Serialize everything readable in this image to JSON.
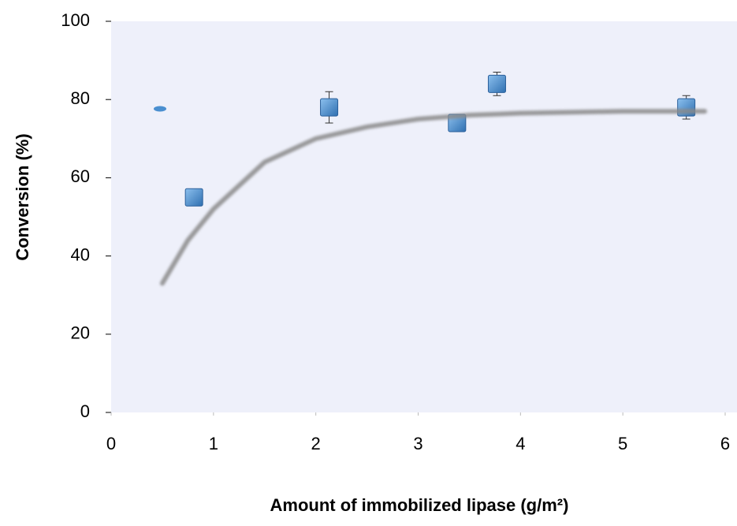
{
  "chart_data": {
    "type": "scatter",
    "x_label": "Amount of immobilized lipase (g/m²)",
    "y_label": "Conversion (%)",
    "xlim": [
      0,
      6
    ],
    "xticks": [
      0,
      1,
      2,
      3,
      4,
      5,
      6
    ],
    "ylim": [
      0,
      100
    ],
    "yticks": [
      0,
      20,
      40,
      60,
      80,
      100
    ],
    "background": "#eef0fa",
    "series": [
      {
        "kind": "points",
        "color": "#4a8fd0",
        "x": [
          0.81,
          2.13,
          3.38,
          3.77,
          5.62
        ],
        "values": [
          55,
          78,
          74,
          84,
          78
        ],
        "errors": [
          1,
          4,
          1,
          3,
          3
        ]
      },
      {
        "kind": "trend",
        "color": "#8a8a8a",
        "x": [
          0.5,
          0.75,
          1,
          1.5,
          2,
          2.5,
          3,
          3.5,
          4,
          5,
          5.8
        ],
        "values": [
          33,
          44,
          52,
          64,
          70,
          73,
          75,
          76,
          76.5,
          77,
          77
        ]
      }
    ]
  }
}
